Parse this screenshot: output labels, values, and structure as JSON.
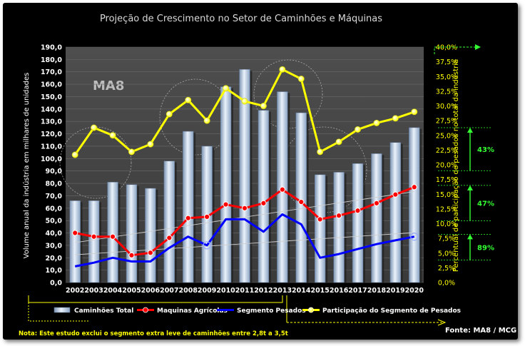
{
  "chart_data": {
    "type": "bar+line",
    "title": "Projeção de Crescimento no Setor de Caminhões e Máquinas",
    "categories": [
      "2002",
      "2003",
      "2004",
      "2005",
      "2006",
      "2007",
      "2008",
      "2009",
      "2010",
      "2011",
      "2012",
      "2013",
      "2014",
      "2015",
      "2016",
      "2017",
      "2018",
      "2019",
      "2020"
    ],
    "ylabel_left": "Volume anual da indústria em milhares de unidades",
    "ylabel_right": "Percentual de participação de pesados no total da indústria",
    "ylim_left": [
      0,
      190
    ],
    "ylim_right": [
      0,
      40
    ],
    "yticks_left": [
      "0,0",
      "10,0",
      "20,0",
      "30,0",
      "40,0",
      "50,0",
      "60,0",
      "70,0",
      "80,0",
      "90,0",
      "100,0",
      "110,0",
      "120,0",
      "130,0",
      "140,0",
      "150,0",
      "160,0",
      "170,0",
      "180,0",
      "190,0"
    ],
    "yticks_right": [
      "0,0%",
      "2,5%",
      "5,0%",
      "7,5%",
      "10,0%",
      "12,5%",
      "15,0%",
      "17,5%",
      "20,0%",
      "22,5%",
      "25,0%",
      "27,5%",
      "30,0%",
      "32,5%",
      "35,0%",
      "37,5%",
      "40,0%"
    ],
    "series": [
      {
        "name": "Caminhões Total",
        "type": "bar",
        "axis": "left",
        "color": "#b8cfe8",
        "values": [
          66,
          66,
          81,
          79,
          76,
          98,
          122,
          110,
          158,
          172,
          139,
          154,
          137,
          87,
          89,
          96,
          104,
          113,
          125
        ]
      },
      {
        "name": "Maquinas Agrícolas",
        "type": "line",
        "axis": "left",
        "color": "#ff0000",
        "values": [
          40,
          37,
          37,
          22,
          24,
          36,
          52,
          53,
          63,
          60,
          64,
          75,
          65,
          51,
          54,
          58,
          64,
          71,
          77
        ]
      },
      {
        "name": "Segmento Pesados",
        "type": "line",
        "axis": "left",
        "color": "#0000ff",
        "values": [
          13,
          16,
          20,
          17,
          17,
          28,
          37,
          30,
          51,
          51,
          41,
          55,
          47,
          20,
          23,
          27,
          31,
          34,
          37
        ]
      },
      {
        "name": "Participação do Segmento de Pesados",
        "type": "line",
        "axis": "right",
        "color": "#ffff00",
        "values": [
          21.7,
          26.3,
          25.0,
          22.2,
          23.5,
          28.6,
          31.0,
          27.5,
          33.0,
          30.8,
          30.0,
          36.2,
          34.6,
          22.2,
          23.9,
          26.0,
          27.1,
          27.9,
          29.0
        ]
      }
    ],
    "annotations": [
      {
        "label": "43%"
      },
      {
        "label": "47%"
      },
      {
        "label": "89%"
      }
    ],
    "watermark": "MA8"
  },
  "note": "Nota: Este estudo exclui o segmento extra leve de caminhões entre 2,8t a 3,5t",
  "source": "Fonte: MA8 / MCG"
}
